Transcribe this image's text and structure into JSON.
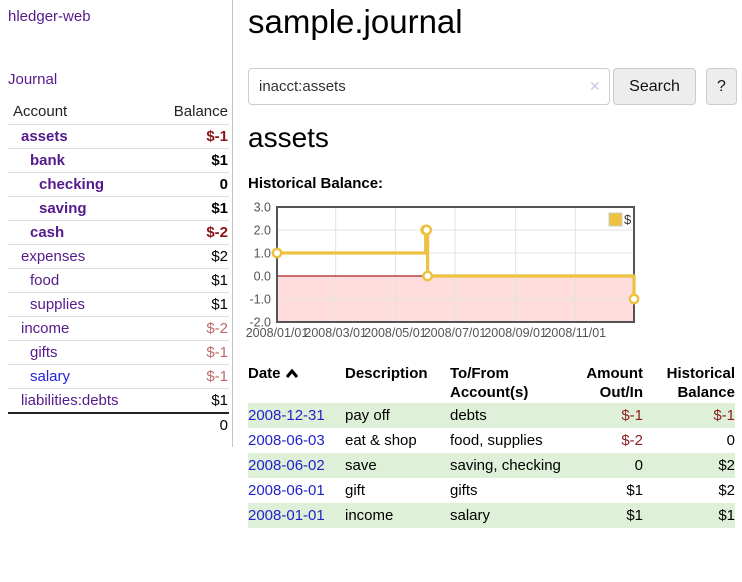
{
  "app": {
    "brand": "hledger-web",
    "nav_journal": "Journal",
    "title": "sample.journal"
  },
  "search": {
    "value": "inacct:assets",
    "clear_icon": "✕",
    "button_label": "Search",
    "help_label": "?"
  },
  "sidebar": {
    "header": {
      "account": "Account",
      "balance": "Balance"
    },
    "accounts": [
      {
        "name": "assets",
        "indent": 1,
        "bold": true,
        "balance": "$-1",
        "balance_style": "neg-strong"
      },
      {
        "name": "bank",
        "indent": 2,
        "bold": true,
        "balance": "$1",
        "balance_style": "strong"
      },
      {
        "name": "checking",
        "indent": 3,
        "bold": true,
        "balance": "0",
        "balance_style": "strong"
      },
      {
        "name": "saving",
        "indent": 3,
        "bold": true,
        "balance": "$1",
        "balance_style": "strong"
      },
      {
        "name": "cash",
        "indent": 2,
        "bold": true,
        "balance": "$-2",
        "balance_style": "neg-strong"
      },
      {
        "name": "expenses",
        "indent": 1,
        "bold": false,
        "balance": "$2",
        "balance_style": "plain"
      },
      {
        "name": "food",
        "indent": 2,
        "bold": false,
        "balance": "$1",
        "balance_style": "plain"
      },
      {
        "name": "supplies",
        "indent": 2,
        "bold": false,
        "balance": "$1",
        "balance_style": "plain"
      },
      {
        "name": "income",
        "indent": 1,
        "bold": false,
        "balance": "$-2",
        "balance_style": "neg-soft"
      },
      {
        "name": "gifts",
        "indent": 2,
        "bold": false,
        "balance": "$-1",
        "balance_style": "neg-soft"
      },
      {
        "name": "salary",
        "indent": 2,
        "bold": false,
        "balance": "$-1",
        "balance_style": "neg-soft",
        "link_color": "blue"
      },
      {
        "name": "liabilities:debts",
        "indent": 1,
        "bold": false,
        "balance": "$1",
        "balance_style": "plain"
      }
    ],
    "total": "0"
  },
  "main": {
    "account_heading": "assets",
    "chart_label": "Historical Balance:"
  },
  "chart_data": {
    "type": "line",
    "title": "Historical Balance",
    "step": true,
    "legend": "$",
    "legend_position": "top-right",
    "grid": true,
    "x_range": [
      "2008-01-01",
      "2008-12-31"
    ],
    "ylim": [
      -2.0,
      3.0
    ],
    "y_ticks": [
      "3.0",
      "2.0",
      "1.0",
      "0.0",
      "-1.0",
      "-2.0"
    ],
    "x_ticks": [
      {
        "label": "2008/01/01",
        "date": "2008-01-01"
      },
      {
        "label": "2008/03/01",
        "date": "2008-03-01"
      },
      {
        "label": "2008/05/01",
        "date": "2008-05-01"
      },
      {
        "label": "2008/07/01",
        "date": "2008-07-01"
      },
      {
        "label": "2008/09/01",
        "date": "2008-09-01"
      },
      {
        "label": "2008/11/01",
        "date": "2008-11-01"
      }
    ],
    "series": [
      {
        "name": "$",
        "color": "#edc240",
        "points": [
          {
            "date": "2008-01-01",
            "value": 1.0
          },
          {
            "date": "2008-06-01",
            "value": 2.0
          },
          {
            "date": "2008-06-02",
            "value": 2.0
          },
          {
            "date": "2008-06-03",
            "value": 0.0
          },
          {
            "date": "2008-12-31",
            "value": -1.0
          }
        ]
      }
    ],
    "negative_region_color": "#ffdddd",
    "zero_line_color": "#aa2222",
    "grid_color": "#e3e3e3",
    "border_color": "#545454",
    "tick_label_color": "#545454"
  },
  "register": {
    "headers": {
      "date": "Date",
      "description": "Description",
      "accounts_line1": "To/From",
      "accounts_line2": "Account(s)",
      "amount_line1": "Amount",
      "amount_line2": "Out/In",
      "balance_line1": "Historical",
      "balance_line2": "Balance"
    },
    "rows": [
      {
        "date": "2008-12-31",
        "description": "pay off",
        "accounts": "debts",
        "amount": "$-1",
        "amount_neg": true,
        "balance": "$-1",
        "balance_neg": true
      },
      {
        "date": "2008-06-03",
        "description": "eat & shop",
        "accounts": "food, supplies",
        "amount": "$-2",
        "amount_neg": true,
        "balance": "0",
        "balance_neg": false
      },
      {
        "date": "2008-06-02",
        "description": "save",
        "accounts": "saving, checking",
        "amount": "0",
        "amount_neg": false,
        "balance": "$2",
        "balance_neg": false
      },
      {
        "date": "2008-06-01",
        "description": "gift",
        "accounts": "gifts",
        "amount": "$1",
        "amount_neg": false,
        "balance": "$2",
        "balance_neg": false
      },
      {
        "date": "2008-01-01",
        "description": "income",
        "accounts": "salary",
        "amount": "$1",
        "amount_neg": false,
        "balance": "$1",
        "balance_neg": false
      }
    ]
  },
  "colors": {
    "link_purple": "#551a8b",
    "link_blue": "#2222cc",
    "negative_strong": "#8b1414",
    "negative_soft": "#bb6a6a",
    "row_stripe_green": "#dff0d8",
    "series_gold": "#edc240"
  }
}
